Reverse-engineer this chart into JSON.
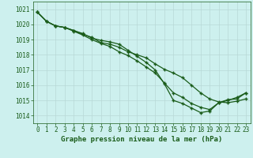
{
  "title": "Graphe pression niveau de la mer (hPa)",
  "bg_color": "#cdf0ee",
  "grid_color": "#b8d8d6",
  "line_color": "#1a5c1a",
  "marker": "+",
  "xlim": [
    -0.5,
    23.5
  ],
  "ylim": [
    1013.5,
    1021.5
  ],
  "yticks": [
    1014,
    1015,
    1016,
    1017,
    1018,
    1019,
    1020,
    1021
  ],
  "xticks": [
    0,
    1,
    2,
    3,
    4,
    5,
    6,
    7,
    8,
    9,
    10,
    11,
    12,
    13,
    14,
    15,
    16,
    17,
    18,
    19,
    20,
    21,
    22,
    23
  ],
  "series": [
    [
      1020.8,
      1020.2,
      1019.9,
      1019.8,
      1019.6,
      1019.4,
      1019.1,
      1018.95,
      1018.85,
      1018.7,
      1018.3,
      1017.9,
      1017.5,
      1017.0,
      1016.1,
      1015.0,
      1014.8,
      1014.5,
      1014.2,
      1014.3,
      1014.85,
      1015.05,
      1015.1,
      1015.5
    ],
    [
      1020.8,
      1020.2,
      1019.9,
      1019.8,
      1019.6,
      1019.35,
      1019.15,
      1018.8,
      1018.7,
      1018.5,
      1018.2,
      1018.0,
      1017.8,
      1017.4,
      1017.05,
      1016.8,
      1016.5,
      1016.0,
      1015.5,
      1015.1,
      1014.9,
      1014.85,
      1014.95,
      1015.1
    ],
    [
      1020.8,
      1020.2,
      1019.9,
      1019.8,
      1019.55,
      1019.3,
      1019.0,
      1018.75,
      1018.55,
      1018.2,
      1017.95,
      1017.6,
      1017.2,
      1016.8,
      1016.15,
      1015.5,
      1015.2,
      1014.8,
      1014.55,
      1014.4,
      1014.85,
      1015.0,
      1015.2,
      1015.5
    ]
  ],
  "title_fontsize": 6.5,
  "tick_fontsize": 5.5,
  "linewidth": 0.9,
  "markersize": 3.5,
  "markeredgewidth": 1.0
}
